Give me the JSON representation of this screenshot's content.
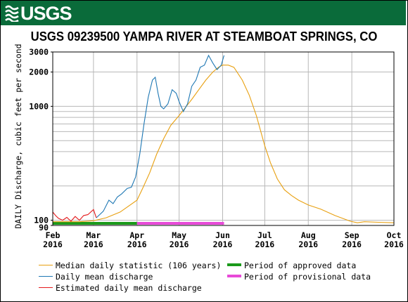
{
  "header": {
    "logo_text": "USGS",
    "brand_color": "#0a6b3a"
  },
  "chart_data": {
    "type": "line",
    "title": "USGS 09239500 YAMPA RIVER AT STEAMBOAT SPRINGS, CO",
    "xlabel": "",
    "ylabel": "DAILY Discharge, cubic feet per second",
    "y_scale": "log",
    "ylim": [
      90,
      3000
    ],
    "xlim": [
      "2016-02-01",
      "2016-10-01"
    ],
    "y_ticks": [
      {
        "value": 3000,
        "label": "3000"
      },
      {
        "value": 2000,
        "label": "2000"
      },
      {
        "value": 1000,
        "label": "1000"
      },
      {
        "value": 100,
        "label": "100"
      },
      {
        "value": 90,
        "label": "90"
      }
    ],
    "y_gridlines": [
      100,
      200,
      300,
      400,
      500,
      600,
      700,
      800,
      900,
      1000,
      2000,
      3000
    ],
    "x_ticks": [
      {
        "date": "2016-02-01",
        "month": "Feb",
        "year": "2016"
      },
      {
        "date": "2016-03-01",
        "month": "Mar",
        "year": "2016"
      },
      {
        "date": "2016-04-01",
        "month": "Apr",
        "year": "2016"
      },
      {
        "date": "2016-05-01",
        "month": "May",
        "year": "2016"
      },
      {
        "date": "2016-06-01",
        "month": "Jun",
        "year": "2016"
      },
      {
        "date": "2016-07-01",
        "month": "Jul",
        "year": "2016"
      },
      {
        "date": "2016-08-01",
        "month": "Aug",
        "year": "2016"
      },
      {
        "date": "2016-09-01",
        "month": "Sep",
        "year": "2016"
      },
      {
        "date": "2016-10-01",
        "month": "Oct",
        "year": "2016"
      }
    ],
    "grid": true,
    "series": [
      {
        "name": "Median daily statistic (106 years)",
        "color": "#e8a010",
        "x": [
          "2016-02-01",
          "2016-02-10",
          "2016-02-20",
          "2016-03-01",
          "2016-03-10",
          "2016-03-20",
          "2016-04-01",
          "2016-04-05",
          "2016-04-10",
          "2016-04-15",
          "2016-04-20",
          "2016-04-25",
          "2016-05-01",
          "2016-05-05",
          "2016-05-10",
          "2016-05-15",
          "2016-05-20",
          "2016-05-25",
          "2016-05-29",
          "2016-06-01",
          "2016-06-05",
          "2016-06-09",
          "2016-06-15",
          "2016-06-20",
          "2016-06-25",
          "2016-07-01",
          "2016-07-05",
          "2016-07-10",
          "2016-07-15",
          "2016-07-20",
          "2016-07-25",
          "2016-08-01",
          "2016-08-10",
          "2016-08-20",
          "2016-08-31",
          "2016-09-05",
          "2016-09-10",
          "2016-09-20",
          "2016-10-01"
        ],
        "values": [
          97,
          97,
          97,
          99,
          105,
          118,
          150,
          190,
          260,
          380,
          520,
          680,
          830,
          960,
          1150,
          1400,
          1700,
          2000,
          2200,
          2300,
          2300,
          2200,
          1700,
          1250,
          830,
          450,
          320,
          230,
          185,
          165,
          150,
          136,
          125,
          110,
          98,
          95,
          97,
          96,
          95
        ]
      },
      {
        "name": "Daily mean discharge",
        "color": "#1f78b4",
        "x": [
          "2016-03-03",
          "2016-03-08",
          "2016-03-12",
          "2016-03-15",
          "2016-03-18",
          "2016-03-21",
          "2016-03-25",
          "2016-03-28",
          "2016-03-31",
          "2016-04-03",
          "2016-04-06",
          "2016-04-09",
          "2016-04-12",
          "2016-04-14",
          "2016-04-16",
          "2016-04-18",
          "2016-04-20",
          "2016-04-23",
          "2016-04-26",
          "2016-04-29",
          "2016-05-01",
          "2016-05-04",
          "2016-05-07",
          "2016-05-10",
          "2016-05-13",
          "2016-05-16",
          "2016-05-19",
          "2016-05-22",
          "2016-05-25",
          "2016-05-28",
          "2016-05-31",
          "2016-06-02"
        ],
        "values": [
          105,
          120,
          150,
          140,
          160,
          170,
          190,
          195,
          240,
          380,
          700,
          1200,
          1700,
          1800,
          1300,
          1000,
          950,
          1050,
          1400,
          1300,
          1100,
          900,
          1050,
          1500,
          1700,
          2200,
          2300,
          2800,
          2400,
          2100,
          2300,
          2800
        ]
      },
      {
        "name": "Estimated daily mean discharge",
        "color": "#e41a1c",
        "x": [
          "2016-02-01",
          "2016-02-03",
          "2016-02-05",
          "2016-02-08",
          "2016-02-11",
          "2016-02-14",
          "2016-02-17",
          "2016-02-20",
          "2016-02-23",
          "2016-02-26",
          "2016-03-01",
          "2016-03-03"
        ],
        "values": [
          118,
          110,
          104,
          100,
          106,
          98,
          108,
          100,
          110,
          112,
          124,
          105
        ]
      }
    ],
    "period_bars": [
      {
        "name": "Period of approved data",
        "color": "#1a9a1a",
        "start": "2016-02-01",
        "end": "2016-04-01"
      },
      {
        "name": "Period of provisional data",
        "color": "#e84ad8",
        "start": "2016-04-01",
        "end": "2016-06-02"
      }
    ]
  }
}
